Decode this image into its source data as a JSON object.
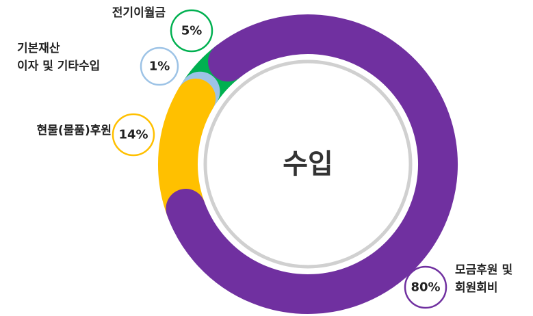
{
  "chart_data": {
    "type": "donut",
    "center_label": "수입",
    "categories": [
      "모금후원 및\n회원회비",
      "현물(물품)후원",
      "기본재산\n이자 및 기타수입",
      "전기이월금"
    ],
    "values": [
      80,
      14,
      1,
      5
    ],
    "value_labels": [
      "80%",
      "14%",
      "1%",
      "5%"
    ],
    "colors": [
      "#7030a0",
      "#ffc000",
      "#9dc3e6",
      "#00b050"
    ]
  }
}
